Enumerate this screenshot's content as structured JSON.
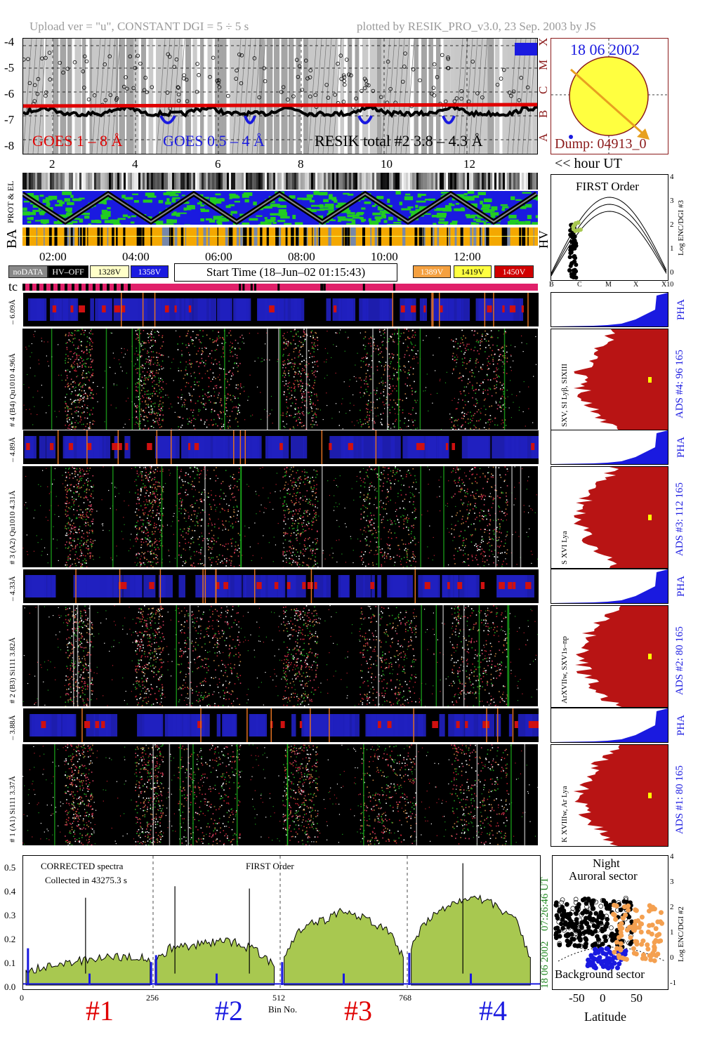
{
  "header": {
    "left": "Upload ver = \"u\", CONSTANT  DGI =   5 ÷   5 s",
    "right": "plotted by RESIK_PRO_v3.0, 23 Sep. 2003 by JS"
  },
  "goes_panel": {
    "y_ticks": [
      "-4",
      "-5",
      "-6",
      "-7",
      "-8"
    ],
    "class_labels": [
      "X",
      "M",
      "C",
      "B",
      "A"
    ],
    "label_goes_long": "GOES 1 – 8 Å",
    "label_goes_short": "GOES 0.5 – 4 Å",
    "label_resik": "RESIK total #2  3.8 – 4.3 Å",
    "x_ticks": [
      "2",
      "4",
      "6",
      "8",
      "10",
      "12"
    ],
    "x_unit_label": "<< hour UT",
    "colors": {
      "goes_long": "#e00000",
      "goes_short": "#1a1ae0",
      "resik": "#000000"
    }
  },
  "sun_panel": {
    "date": "18 06 2002",
    "dump": "Dump: 04913_0",
    "colors": {
      "disk": "#ffff40",
      "arrow": "#e8a020",
      "border": "#8b1a1a"
    }
  },
  "orbit_strip": {
    "label_prot": "PROT & EL",
    "label_ba": "BA",
    "label_hv": "HV",
    "time_ticks": [
      "02:00",
      "04:00",
      "06:00",
      "08:00",
      "10:00",
      "12:00"
    ]
  },
  "hv_panel": {
    "title": "FIRST Order",
    "y_ticks": [
      "4",
      "3",
      "2",
      "1",
      "0"
    ],
    "y_label": "Log ENC/DGI #3",
    "x_ticks": [
      "B",
      "C",
      "M",
      "X",
      "X10"
    ]
  },
  "legend": {
    "nodata": "noDATA",
    "hv_off": "HV–OFF",
    "v1328": "1328V",
    "v1358": "1358V",
    "start_time": "Start Time (18–Jun–02 01:15:43)",
    "v1389": "1389V",
    "v1419": "1419V",
    "v1450": "1450V",
    "colors": {
      "nodata": "#888888",
      "hv_off": "#000000",
      "v1328": "#ffffc8",
      "v1358": "#1a1ae0",
      "v1389": "#f4a040",
      "v1419": "#ffff40",
      "v1450": "#d00000"
    }
  },
  "tc_label": "tc",
  "detectors": [
    {
      "pha_label": "– 6.09Å",
      "main_label": "# 4 (B4) Qu1010 4.96Å",
      "side_label": "SXV, SI Lyβ, SIXIII",
      "ads": "ADS #4:   96 165",
      "pha": "PHA"
    },
    {
      "pha_label": "– 4.89Å",
      "main_label": "# 3 (A2) Qu1010  4.31Å",
      "side_label": "S XVI Lya",
      "ads": "ADS #3:   112 165",
      "pha": "PHA"
    },
    {
      "pha_label": "– 4.33Å",
      "main_label": "# 2 (B3) Si111  3.82Å",
      "side_label": "ArXVIIw, SXV1s–np",
      "ads": "ADS #2:   80 165",
      "pha": "PHA"
    },
    {
      "pha_label": "– 3.88Å",
      "main_label": "# 1 (A1) Si111  3.37Å",
      "side_label": "K XVIIIw, Ar Lya",
      "ads": "ADS #1:   80 165",
      "pha": "PHA"
    }
  ],
  "spectrum_panel": {
    "label_corrected": "CORRECTED spectra",
    "label_collected": "Collected in 43275.3 s",
    "label_order": "FIRST Order",
    "y_ticks": [
      "0.5",
      "0.4",
      "0.3",
      "0.2",
      "0.1",
      "0.0"
    ],
    "x_ticks": [
      "0",
      "256",
      "512",
      "768"
    ],
    "x_label": "Bin No.",
    "vertical_time": "07:26:46 UT",
    "vertical_date": "18 06 2002",
    "channel_labels": [
      "#1",
      "#2",
      "#3",
      "#4"
    ],
    "colors": {
      "fill": "#a8c850",
      "ch1": "#e00000",
      "ch2": "#1a1ae0",
      "ch3": "#e00000",
      "ch4": "#1a1ae0"
    }
  },
  "chart_data": {
    "type": "area",
    "title": "CORRECTED spectra",
    "xlabel": "Bin No.",
    "ylabel": "",
    "xlim": [
      0,
      1024
    ],
    "ylim": [
      0,
      0.55
    ],
    "series": [
      {
        "name": "#1",
        "x": [
          0,
          32,
          64,
          96,
          128,
          160,
          192,
          224,
          250
        ],
        "values": [
          0.05,
          0.08,
          0.09,
          0.1,
          0.11,
          0.12,
          0.12,
          0.13,
          0.1
        ]
      },
      {
        "name": "#2",
        "x": [
          260,
          290,
          320,
          350,
          380,
          410,
          440,
          470,
          500
        ],
        "values": [
          0.1,
          0.16,
          0.17,
          0.18,
          0.19,
          0.19,
          0.17,
          0.14,
          0.08
        ]
      },
      {
        "name": "#3",
        "x": [
          520,
          550,
          580,
          610,
          640,
          670,
          700,
          730,
          760
        ],
        "values": [
          0.12,
          0.24,
          0.27,
          0.29,
          0.33,
          0.3,
          0.27,
          0.24,
          0.12
        ]
      },
      {
        "name": "#4",
        "x": [
          776,
          806,
          836,
          866,
          896,
          926,
          956,
          986,
          1016
        ],
        "values": [
          0.16,
          0.28,
          0.33,
          0.36,
          0.39,
          0.37,
          0.33,
          0.28,
          0.12
        ]
      }
    ]
  },
  "latitude_panel": {
    "title_night": "Night",
    "title_sector": "Auroral sector",
    "bottom_label": "Background sector",
    "y_ticks": [
      "4",
      "3",
      "2",
      "1",
      "0",
      "-1"
    ],
    "y_label": "Log ENC/DGI #2",
    "x_ticks": [
      "-50",
      "0",
      "50"
    ],
    "x_label": "Latitude"
  }
}
